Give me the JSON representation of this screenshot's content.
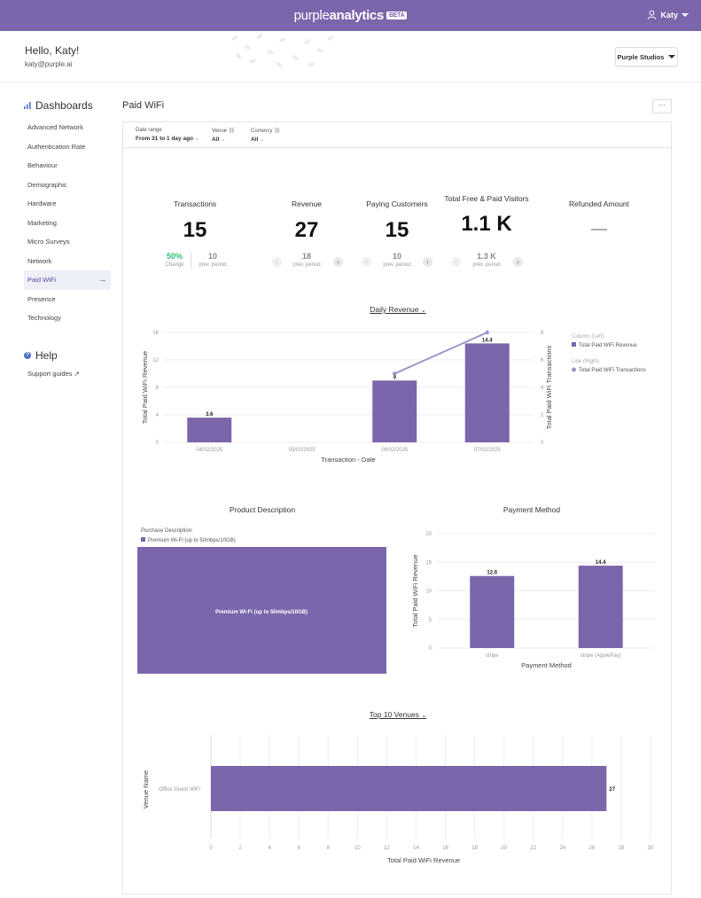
{
  "app": {
    "brand_a": "purple",
    "brand_b": "analytics",
    "beta": "BETA",
    "user_name": "Katy"
  },
  "header": {
    "greeting": "Hello, Katy!",
    "email": "katy@purple.ai",
    "org_selector": "Purple Studios"
  },
  "sidebar": {
    "dashboards_label": "Dashboards",
    "items": [
      {
        "label": "Advanced Network"
      },
      {
        "label": "Authentication Rate"
      },
      {
        "label": "Behaviour"
      },
      {
        "label": "Demographic"
      },
      {
        "label": "Hardware"
      },
      {
        "label": "Marketing"
      },
      {
        "label": "Micro Surveys"
      },
      {
        "label": "Network"
      },
      {
        "label": "Paid WiFi",
        "active": true
      },
      {
        "label": "Presence"
      },
      {
        "label": "Technology"
      }
    ],
    "help_label": "Help",
    "support_label": "Support guides ↗"
  },
  "page": {
    "title": "Paid WiFi",
    "more_label": "···"
  },
  "filters": [
    {
      "label": "Date range",
      "value": "From 31 to 1 day ago"
    },
    {
      "label": "Venue",
      "value": "All"
    },
    {
      "label": "Currency",
      "value": "All"
    }
  ],
  "kpis": [
    {
      "title": "Transactions",
      "value": "15",
      "change": "50%",
      "change_label": "Change",
      "prev": "10",
      "prev_label": "prev. period"
    },
    {
      "title": "Revenue",
      "value": "27",
      "prev": "18",
      "prev_label": "prev. period"
    },
    {
      "title": "Paying Customers",
      "value": "15",
      "prev": "10",
      "prev_label": "prev. period"
    },
    {
      "title": "Total Free & Paid Visitors",
      "value": "1.1 K",
      "prev": "1.3 K",
      "prev_label": "prev. period"
    },
    {
      "title": "Refunded Amount",
      "value": "—"
    }
  ],
  "sections": {
    "daily_revenue": "Daily Revenue",
    "product_description": "Product Description",
    "payment_method": "Payment Method",
    "top_venues": "Top 10 Venues"
  },
  "colors": {
    "brand": "#7b66ac",
    "bar": "#7b66ac",
    "line": "#9d8fc7",
    "positive": "#2fbf71"
  },
  "chart_data": [
    {
      "type": "bar",
      "categories": [
        "04/02/2025",
        "05/02/2025",
        "06/02/2025",
        "07/02/2025"
      ],
      "series": [
        {
          "name": "Total Paid WiFi Revenue",
          "axis": "left",
          "chart": "bar",
          "values": [
            3.6,
            0,
            9,
            14.4
          ],
          "labels": [
            "3.6",
            "",
            "9",
            "14.4"
          ]
        },
        {
          "name": "Total Paid WiFi Transactions",
          "axis": "right",
          "chart": "line",
          "values": [
            null,
            null,
            5,
            8
          ]
        }
      ],
      "xlabel": "Transaction - Date",
      "ylabel": "Total Paid WiFi Revenue",
      "y2label": "Total Paid WiFi Transactions",
      "ylim": [
        0,
        16
      ],
      "y2lim": [
        0,
        8
      ],
      "yticks": [
        0,
        4,
        8,
        12,
        16
      ],
      "y2ticks": [
        0,
        2,
        4,
        6,
        8
      ],
      "legend": {
        "group1": "Column (Left)",
        "group2": "Line (Right)"
      },
      "legend_position": "right"
    },
    {
      "type": "table",
      "legend_title": "Purchase Description:",
      "categories": [
        "Premium Wi-Fi (up to 50mbps/10GB)"
      ],
      "values": [
        27
      ]
    },
    {
      "type": "bar",
      "categories": [
        "stripe",
        "stripe (ApplePay)"
      ],
      "values": [
        12.6,
        14.4
      ],
      "labels": [
        "12.6",
        "14.4"
      ],
      "xlabel": "Payment Method",
      "ylabel": "Total Paid WiFi Revenue",
      "ylim": [
        0,
        20
      ],
      "yticks": [
        0,
        5,
        10,
        15,
        20
      ]
    },
    {
      "type": "bar",
      "orientation": "horizontal",
      "categories": [
        "Office Guest WiFi"
      ],
      "values": [
        27
      ],
      "labels": [
        "27"
      ],
      "xlabel": "Total Paid WiFi Revenue",
      "ylabel": "Venue Name",
      "xlim": [
        0,
        30
      ],
      "xticks": [
        0,
        2,
        4,
        6,
        8,
        10,
        12,
        14,
        16,
        18,
        20,
        22,
        24,
        26,
        28,
        30
      ]
    }
  ]
}
